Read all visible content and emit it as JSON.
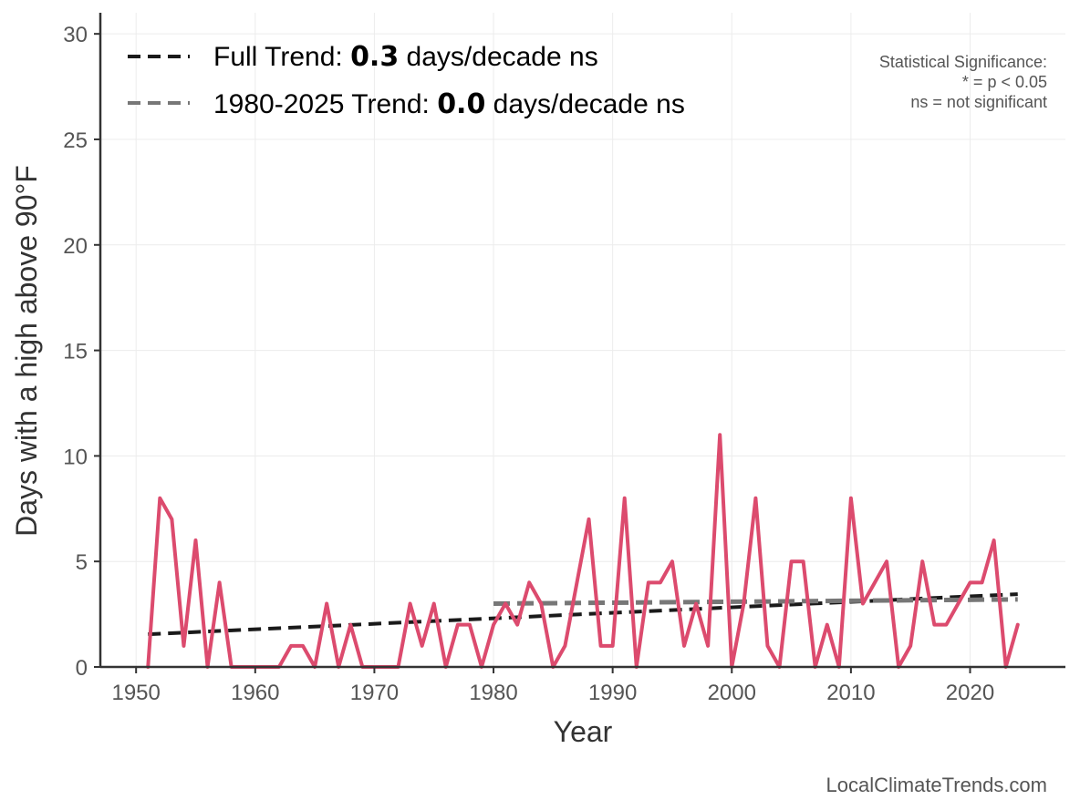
{
  "chart_data": {
    "type": "line",
    "xlabel": "Year",
    "ylabel": "Days with a high above 90°F",
    "xlim": [
      1947,
      2028
    ],
    "ylim": [
      0,
      31
    ],
    "x_ticks": [
      1950,
      1960,
      1970,
      1980,
      1990,
      2000,
      2010,
      2020
    ],
    "y_ticks": [
      0,
      5,
      10,
      15,
      20,
      25,
      30
    ],
    "grid": true,
    "series": [
      {
        "name": "",
        "color": "#DC4B6E",
        "x": [
          1951,
          1952,
          1953,
          1954,
          1955,
          1956,
          1957,
          1958,
          1959,
          1960,
          1961,
          1962,
          1963,
          1964,
          1965,
          1966,
          1967,
          1968,
          1969,
          1970,
          1971,
          1972,
          1973,
          1974,
          1975,
          1976,
          1977,
          1978,
          1979,
          1980,
          1981,
          1982,
          1983,
          1984,
          1985,
          1986,
          1987,
          1988,
          1989,
          1990,
          1991,
          1992,
          1993,
          1994,
          1995,
          1996,
          1997,
          1998,
          1999,
          2000,
          2001,
          2002,
          2003,
          2004,
          2005,
          2006,
          2007,
          2008,
          2009,
          2010,
          2011,
          2012,
          2013,
          2014,
          2015,
          2016,
          2017,
          2018,
          2019,
          2020,
          2021,
          2022,
          2023,
          2024
        ],
        "values": [
          0,
          8,
          7,
          1,
          6,
          0,
          4,
          0,
          0,
          0,
          0,
          0,
          1,
          1,
          0,
          3,
          0,
          2,
          0,
          0,
          0,
          0,
          3,
          1,
          3,
          0,
          2,
          2,
          0,
          2,
          3,
          2,
          4,
          3,
          0,
          1,
          4,
          7,
          1,
          1,
          8,
          0,
          4,
          4,
          5,
          1,
          3,
          1,
          11,
          0,
          3,
          8,
          1,
          0,
          5,
          5,
          0,
          2,
          0,
          8,
          3,
          4,
          5,
          0,
          1,
          5,
          2,
          2,
          3,
          4,
          4,
          6,
          0,
          2
        ]
      }
    ],
    "trends": [
      {
        "label_prefix": "Full Trend: ",
        "value": "0.3",
        "label_suffix": " days/decade ns",
        "color": "#1a1a1a",
        "x": [
          1951,
          2024
        ],
        "y": [
          1.55,
          3.45
        ]
      },
      {
        "label_prefix": "1980-2025 Trend: ",
        "value": "0.0",
        "label_suffix": " days/decade ns",
        "color": "#777777",
        "x": [
          1980,
          2024
        ],
        "y": [
          3.0,
          3.2
        ]
      }
    ],
    "legend_position": "top-left",
    "annotation": {
      "lines": [
        "Statistical Significance:",
        "* = p < 0.05",
        "ns = not significant"
      ]
    },
    "source": "LocalClimateTrends.com"
  }
}
